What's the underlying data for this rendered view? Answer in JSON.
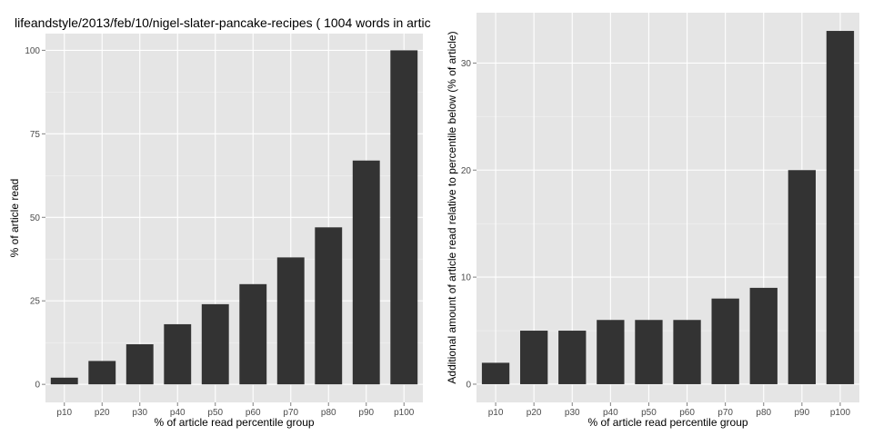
{
  "chart_data": [
    {
      "type": "bar",
      "title": "lifeandstyle/2013/feb/10/nigel-slater-pancake-recipes ( 1004 words in artic",
      "xlabel": "% of article read percentile group",
      "ylabel": "% of article read",
      "categories": [
        "p10",
        "p20",
        "p30",
        "p40",
        "p50",
        "p60",
        "p70",
        "p80",
        "p90",
        "p100"
      ],
      "values": [
        2,
        7,
        12,
        18,
        24,
        30,
        38,
        47,
        67,
        100
      ],
      "ylim": [
        -5.4,
        105
      ],
      "yticks": [
        0,
        25,
        50,
        75,
        100
      ],
      "grid": true,
      "bar_color": "#333333",
      "panel_color": "#e5e5e5"
    },
    {
      "type": "bar",
      "title": "",
      "xlabel": "% of article read percentile group",
      "ylabel": "Additional amount of article read relative to percentile below (% of article)",
      "categories": [
        "p10",
        "p20",
        "p30",
        "p40",
        "p50",
        "p60",
        "p70",
        "p80",
        "p90",
        "p100"
      ],
      "values": [
        2,
        5,
        5,
        6,
        6,
        6,
        8,
        9,
        20,
        33
      ],
      "ylim": [
        -1.7,
        34.7
      ],
      "yticks": [
        0,
        10,
        20,
        30
      ],
      "grid": true,
      "bar_color": "#333333",
      "panel_color": "#e5e5e5"
    }
  ]
}
